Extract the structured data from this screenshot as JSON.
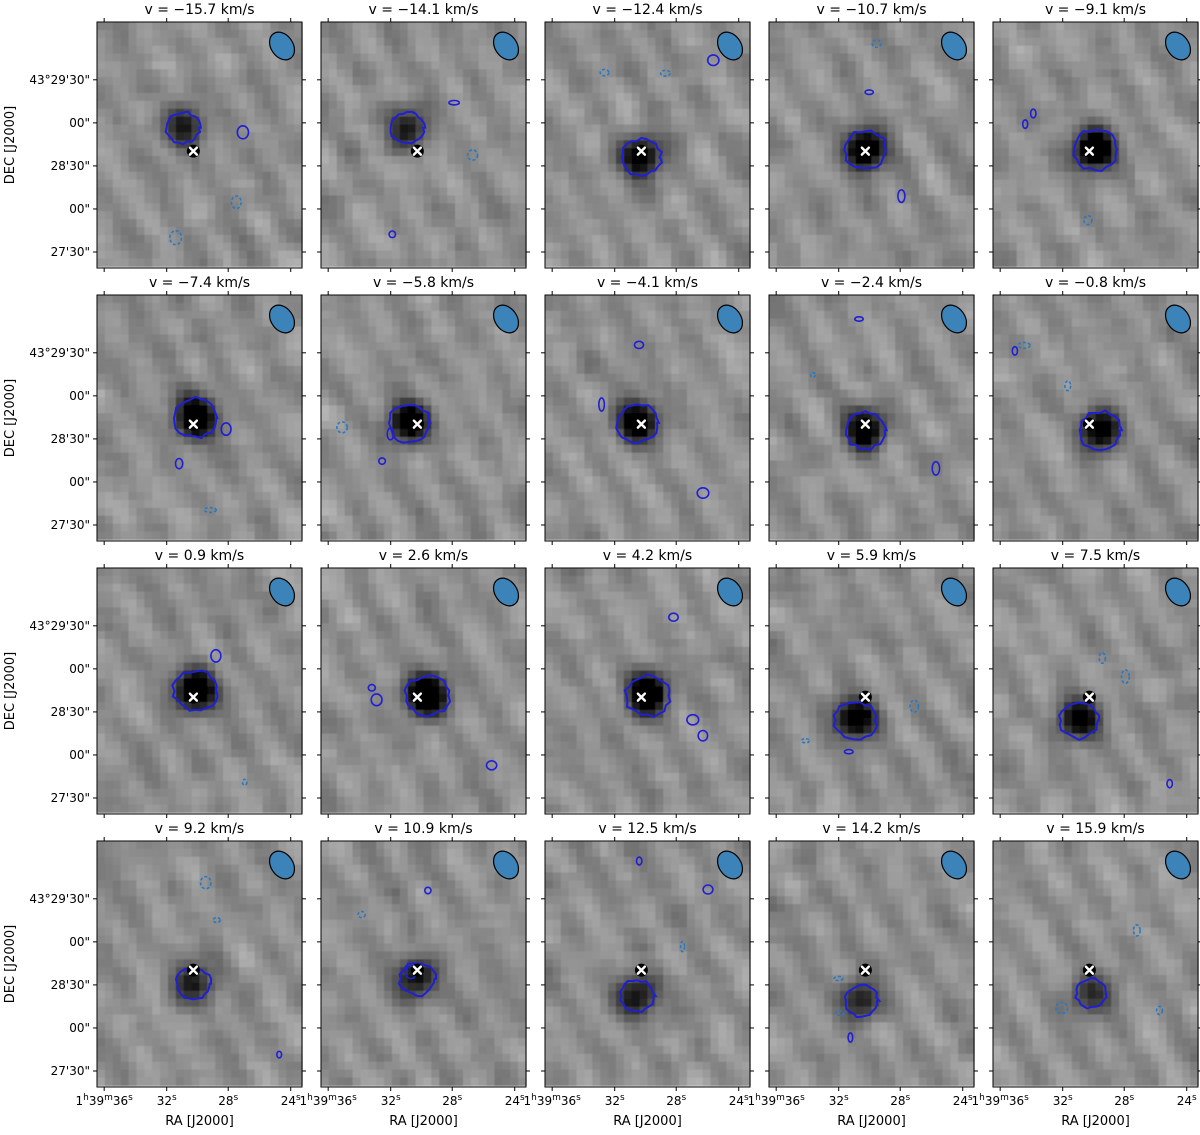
{
  "figure": {
    "colormap": "gray_r",
    "contour_colors": {
      "positive": "#1f1fd6",
      "negative": "#2a78c0"
    },
    "beam_color": "#3b83b8",
    "marker_color": "#ffffff",
    "ylabel": "DEC [J2000]",
    "xlabel": "RA [J2000]",
    "y_ticks": [
      "43°29'30\"",
      "00\"",
      "28'30\"",
      "00\"",
      "27'30\""
    ],
    "x_ticks": [
      "1h39m36s",
      "32s",
      "28s",
      "24s"
    ],
    "x_tick_parts": [
      {
        "main": "1",
        "sup1": "h",
        "mid1": "39",
        "sup2": "m",
        "mid2": "36",
        "sup3": "s"
      },
      {
        "main": "32",
        "sup1": "s"
      },
      {
        "main": "28",
        "sup1": "s"
      },
      {
        "main": "24",
        "sup1": "s"
      }
    ]
  },
  "chart_data": {
    "type": "heatmap",
    "description_values": "channel maps: velocity of each panel in km/s",
    "velocity_unit": "km/s",
    "panels": [
      {
        "label": "v = −15.7 km/s",
        "v": -15.7,
        "peak": 0.55,
        "blob": [
          0.42,
          0.43
        ]
      },
      {
        "label": "v = −14.1 km/s",
        "v": -14.1,
        "peak": 0.55,
        "blob": [
          0.42,
          0.43
        ]
      },
      {
        "label": "v = −12.4 km/s",
        "v": -12.4,
        "peak": 0.8,
        "blob": [
          0.47,
          0.55
        ]
      },
      {
        "label": "v = −10.7 km/s",
        "v": -10.7,
        "peak": 0.95,
        "blob": [
          0.47,
          0.52
        ]
      },
      {
        "label": "v = −9.1 km/s",
        "v": -9.1,
        "peak": 1.0,
        "blob": [
          0.5,
          0.52
        ]
      },
      {
        "label": "v = −7.4 km/s",
        "v": -7.4,
        "peak": 1.0,
        "blob": [
          0.48,
          0.5
        ]
      },
      {
        "label": "v = −5.8 km/s",
        "v": -5.8,
        "peak": 0.9,
        "blob": [
          0.43,
          0.52
        ]
      },
      {
        "label": "v = −4.1 km/s",
        "v": -4.1,
        "peak": 0.9,
        "blob": [
          0.45,
          0.52
        ]
      },
      {
        "label": "v = −2.4 km/s",
        "v": -2.4,
        "peak": 0.85,
        "blob": [
          0.47,
          0.55
        ]
      },
      {
        "label": "v = −0.8 km/s",
        "v": -0.8,
        "peak": 0.9,
        "blob": [
          0.52,
          0.55
        ]
      },
      {
        "label": "v = 0.9 km/s",
        "v": 0.9,
        "peak": 1.0,
        "blob": [
          0.48,
          0.5
        ]
      },
      {
        "label": "v = 2.6 km/s",
        "v": 2.6,
        "peak": 1.0,
        "blob": [
          0.52,
          0.52
        ]
      },
      {
        "label": "v = 4.2 km/s",
        "v": 4.2,
        "peak": 1.0,
        "blob": [
          0.5,
          0.52
        ]
      },
      {
        "label": "v = 5.9 km/s",
        "v": 5.9,
        "peak": 0.9,
        "blob": [
          0.42,
          0.62
        ]
      },
      {
        "label": "v = 7.5 km/s",
        "v": 7.5,
        "peak": 0.8,
        "blob": [
          0.42,
          0.62
        ]
      },
      {
        "label": "v = 9.2 km/s",
        "v": 9.2,
        "peak": 0.6,
        "blob": [
          0.47,
          0.58
        ]
      },
      {
        "label": "v = 10.9 km/s",
        "v": 10.9,
        "peak": 0.65,
        "blob": [
          0.47,
          0.56
        ]
      },
      {
        "label": "v = 12.5 km/s",
        "v": 12.5,
        "peak": 0.6,
        "blob": [
          0.45,
          0.63
        ]
      },
      {
        "label": "v = 14.2 km/s",
        "v": 14.2,
        "peak": 0.55,
        "blob": [
          0.45,
          0.65
        ]
      },
      {
        "label": "v = 15.9 km/s",
        "v": 15.9,
        "peak": 0.45,
        "blob": [
          0.48,
          0.62
        ]
      }
    ]
  }
}
